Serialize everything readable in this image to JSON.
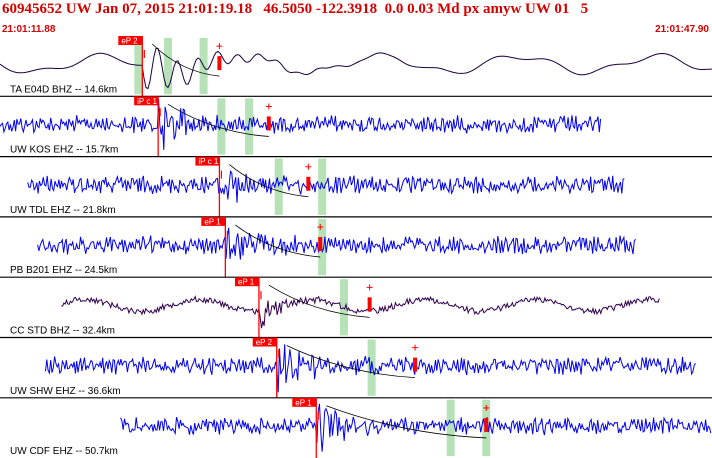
{
  "header": {
    "title": "60945652 UW Jan 07, 2015 21:01:19.18   46.5050 -122.3918  0.0 0.03 Md px amyw UW 01   5",
    "start_time": "21:01:11.88",
    "end_time": "21:01:47.90"
  },
  "colors": {
    "title": "#d40000",
    "trace_blue": "#0000ee",
    "trace_dark": "#1a0040",
    "trace_purple": "#300050",
    "pick_box": "#ff0000",
    "window_band": "#b7e2b7",
    "separator": "#000000"
  },
  "chart_data": {
    "type": "line",
    "x_range_seconds": [
      0,
      36.02
    ],
    "traces": [
      {
        "label": "TA E04D BHZ -- 14.6km",
        "color": "#1a0040",
        "style": "long-period",
        "start": 0.0,
        "end": 36.02,
        "pick_label": "eP 2",
        "pick_time": 7.2,
        "pick_polarity": "down",
        "windows": [
          7.0,
          8.5,
          10.3
        ],
        "coda_end": 11.1
      },
      {
        "label": "UW KOS EHZ -- 15.7km",
        "color": "#0000ee",
        "style": "short-period",
        "start": 0.0,
        "end": 30.4,
        "pick_label": "iP c 1",
        "pick_time": 8.0,
        "pick_polarity": "up",
        "windows": [
          11.2,
          12.6
        ],
        "coda_end": 13.6
      },
      {
        "label": "UW TDL EHZ -- 21.8km",
        "color": "#0000ee",
        "style": "short-period",
        "start": 1.4,
        "end": 31.6,
        "pick_label": "iP c 1",
        "pick_time": 11.1,
        "pick_polarity": "down",
        "windows": [
          14.1,
          16.3
        ],
        "coda_end": 15.6
      },
      {
        "label": "PB B201 EHZ -- 24.5km",
        "color": "#0000ee",
        "style": "short-period",
        "start": 1.9,
        "end": 32.2,
        "pick_label": "eP 1",
        "pick_time": 11.4,
        "pick_polarity": "down",
        "windows": [
          16.3
        ],
        "coda_end": 16.2
      },
      {
        "label": "CC STD BHZ -- 32.4km",
        "color": "#300050",
        "style": "mixed",
        "start": 3.1,
        "end": 33.4,
        "pick_label": "eP 1",
        "pick_time": 13.1,
        "pick_polarity": "down",
        "windows": [
          17.4
        ],
        "coda_end": 18.7
      },
      {
        "label": "UW SHW EHZ -- 36.6km",
        "color": "#0000ee",
        "style": "short-period",
        "start": 2.3,
        "end": 35.2,
        "pick_label": "eP 2",
        "pick_time": 14.0,
        "pick_polarity": "up",
        "windows": [
          18.8
        ],
        "coda_end": 21.0
      },
      {
        "label": "UW CDF EHZ -- 50.7km",
        "color": "#0000ee",
        "style": "short-period",
        "start": 6.1,
        "end": 36.02,
        "pick_label": "eP 1",
        "pick_time": 16.0,
        "pick_polarity": "down",
        "windows": [
          22.8,
          24.6
        ],
        "coda_end": 24.6
      }
    ]
  }
}
